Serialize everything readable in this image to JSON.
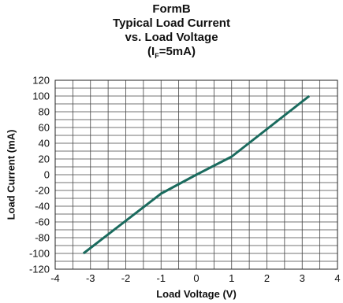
{
  "chart_data": {
    "type": "line",
    "title_lines": [
      "FormB",
      "Typical Load Current",
      "vs. Load Voltage"
    ],
    "title_param": {
      "prefix": "(I",
      "subscript": "F",
      "suffix": "=5mA)"
    },
    "xlabel": "Load Voltage (V)",
    "ylabel": "Load Current (mA)",
    "xlim": [
      -4,
      4
    ],
    "ylim": [
      -120,
      120
    ],
    "x_ticks": [
      -4,
      -3,
      -2,
      -1,
      0,
      1,
      2,
      3,
      4
    ],
    "y_ticks": [
      -120,
      -100,
      -80,
      -60,
      -40,
      -20,
      0,
      20,
      40,
      60,
      80,
      100,
      120
    ],
    "x_grid_step": 0.5,
    "y_grid_step": 10,
    "grid": true,
    "series": [
      {
        "color": "#1a6b5e",
        "x": [
          -3.2,
          -1.0,
          0.0,
          1.0,
          3.2
        ],
        "y": [
          -100,
          -24,
          0,
          23,
          100
        ]
      }
    ]
  }
}
